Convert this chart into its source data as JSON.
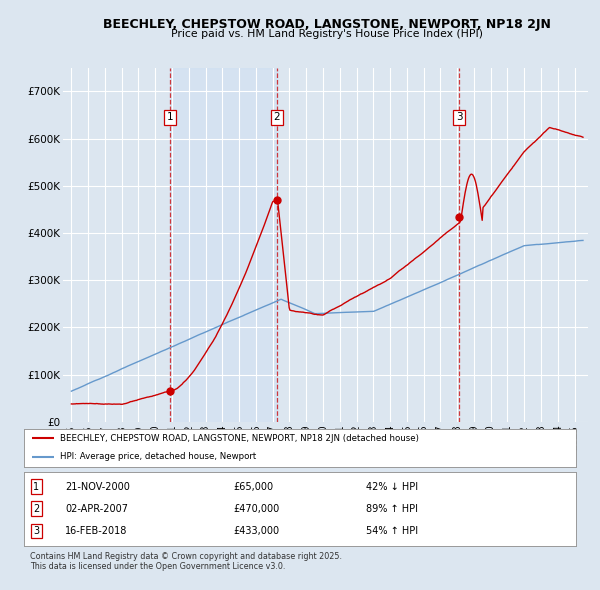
{
  "title": "BEECHLEY, CHEPSTOW ROAD, LANGSTONE, NEWPORT, NP18 2JN",
  "subtitle": "Price paid vs. HM Land Registry's House Price Index (HPI)",
  "background_color": "#dce6f0",
  "plot_bg_color": "#dce6f0",
  "sale_color": "#cc0000",
  "hpi_color": "#6699cc",
  "sale_points": [
    {
      "date": 2000.89,
      "price": 65000,
      "label": "1"
    },
    {
      "date": 2007.25,
      "price": 470000,
      "label": "2"
    },
    {
      "date": 2018.12,
      "price": 433000,
      "label": "3"
    }
  ],
  "vline_dates": [
    2000.89,
    2007.25,
    2018.12
  ],
  "legend_sale_label": "BEECHLEY, CHEPSTOW ROAD, LANGSTONE, NEWPORT, NP18 2JN (detached house)",
  "legend_hpi_label": "HPI: Average price, detached house, Newport",
  "table_rows": [
    {
      "num": "1",
      "date": "21-NOV-2000",
      "price": "£65,000",
      "change": "42% ↓ HPI"
    },
    {
      "num": "2",
      "date": "02-APR-2007",
      "price": "£470,000",
      "change": "89% ↑ HPI"
    },
    {
      "num": "3",
      "date": "16-FEB-2018",
      "price": "£433,000",
      "change": "54% ↑ HPI"
    }
  ],
  "footer": "Contains HM Land Registry data © Crown copyright and database right 2025.\nThis data is licensed under the Open Government Licence v3.0.",
  "ylim": [
    0,
    750000
  ],
  "xlim": [
    1994.5,
    2025.8
  ],
  "yticks": [
    0,
    100000,
    200000,
    300000,
    400000,
    500000,
    600000,
    700000
  ],
  "ytick_labels": [
    "£0",
    "£100K",
    "£200K",
    "£300K",
    "£400K",
    "£500K",
    "£600K",
    "£700K"
  ]
}
